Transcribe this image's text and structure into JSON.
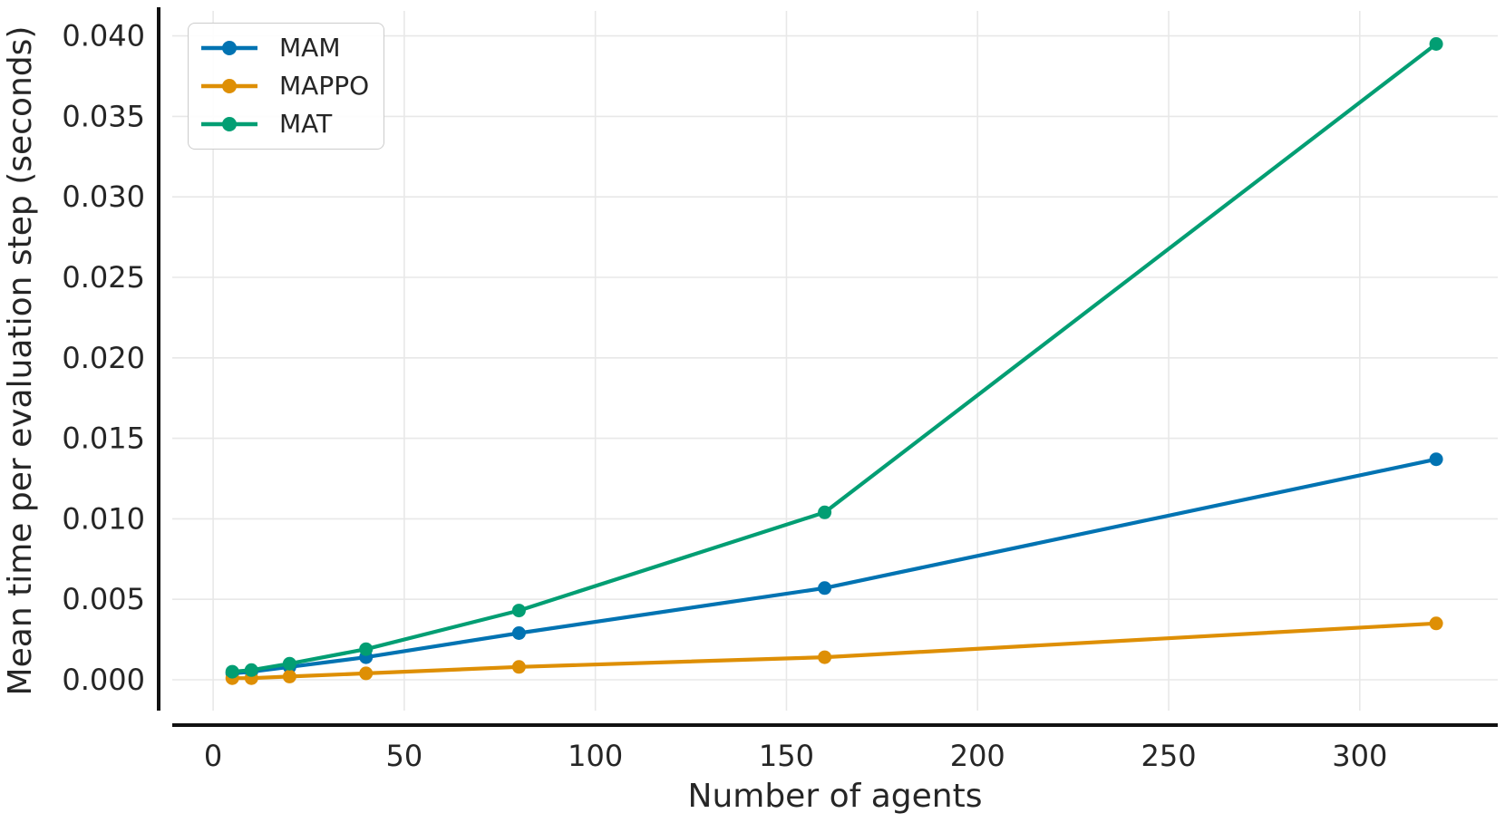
{
  "figure": {
    "background": "#ffffff",
    "text_color": "#262626",
    "spine_color": "#111111",
    "grid_color": "#e8e8e8",
    "legend_border_color": "#cccccc"
  },
  "chart_data": {
    "type": "line",
    "title": "",
    "xlabel": "Number of agents",
    "ylabel": "Mean time per evaluation step (seconds)",
    "x": [
      5,
      10,
      20,
      40,
      80,
      160,
      320
    ],
    "series": [
      {
        "name": "MAM",
        "color": "#0173b2",
        "values": [
          0.0004,
          0.0005,
          0.0008,
          0.0014,
          0.0029,
          0.0057,
          0.0137
        ]
      },
      {
        "name": "MAPPO",
        "color": "#de8f05",
        "values": [
          0.0001,
          0.0001,
          0.0002,
          0.0004,
          0.0008,
          0.0014,
          0.0035
        ]
      },
      {
        "name": "MAT",
        "color": "#029e73",
        "values": [
          0.0005,
          0.0006,
          0.001,
          0.0019,
          0.0043,
          0.0104,
          0.0395
        ]
      }
    ],
    "xticks": [
      0,
      50,
      100,
      150,
      200,
      250,
      300
    ],
    "xtick_labels": [
      "0",
      "50",
      "100",
      "150",
      "200",
      "250",
      "300"
    ],
    "yticks": [
      0.0,
      0.005,
      0.01,
      0.015,
      0.02,
      0.025,
      0.03,
      0.035,
      0.04
    ],
    "ytick_labels": [
      "0.000",
      "0.005",
      "0.010",
      "0.015",
      "0.020",
      "0.025",
      "0.030",
      "0.035",
      "0.040"
    ],
    "xlim": [
      -10.7,
      336.1
    ],
    "ylim": [
      -0.001915,
      0.041554
    ],
    "grid": true,
    "marker": "circle",
    "legend": {
      "position": "upper left",
      "labels": [
        "MAM",
        "MAPPO",
        "MAT"
      ]
    }
  }
}
